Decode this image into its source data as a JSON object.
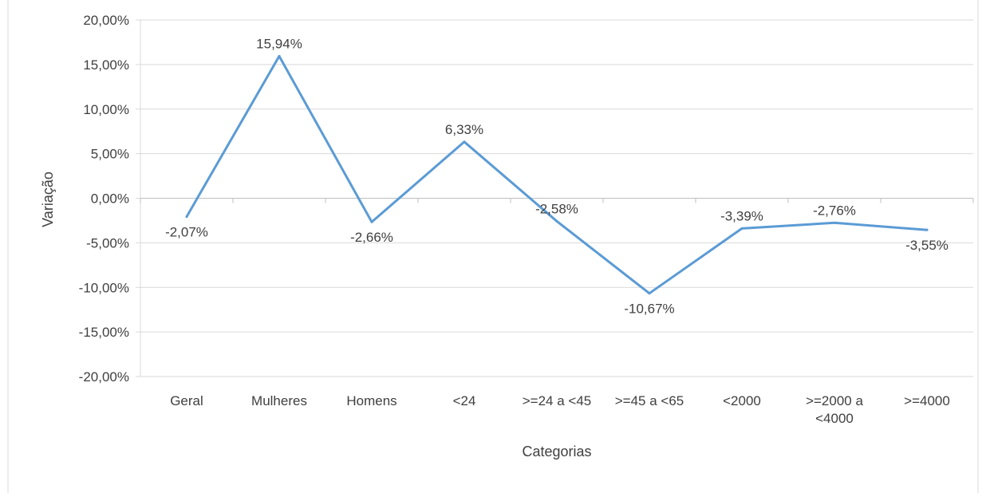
{
  "chart_data": {
    "type": "line",
    "categories": [
      "Geral",
      "Mulheres",
      "Homens",
      "<24",
      ">=24 a <45",
      ">=45 a <65",
      "<2000",
      ">=2000 a <4000",
      ">=4000"
    ],
    "values": [
      -2.07,
      15.94,
      -2.66,
      6.33,
      -2.58,
      -10.67,
      -3.39,
      -2.76,
      -3.55
    ],
    "data_labels": [
      "-2,07%",
      "15,94%",
      "-2,66%",
      "6,33%",
      "-2,58%",
      "-10,67%",
      "-3,39%",
      "-2,76%",
      "-3,55%"
    ],
    "xlabel": "Categorias",
    "ylabel": "Variação",
    "ylim": [
      -20,
      20
    ],
    "yticks": [
      20,
      15,
      10,
      5,
      0,
      -5,
      -10,
      -15,
      -20
    ],
    "ytick_labels": [
      "20,00%",
      "15,00%",
      "10,00%",
      "5,00%",
      "0,00%",
      "-5,00%",
      "-10,00%",
      "-15,00%",
      "-20,00%"
    ],
    "grid": true,
    "legend": "none",
    "line_color": "#5B9BD5",
    "grid_color": "#D9D9D9"
  }
}
